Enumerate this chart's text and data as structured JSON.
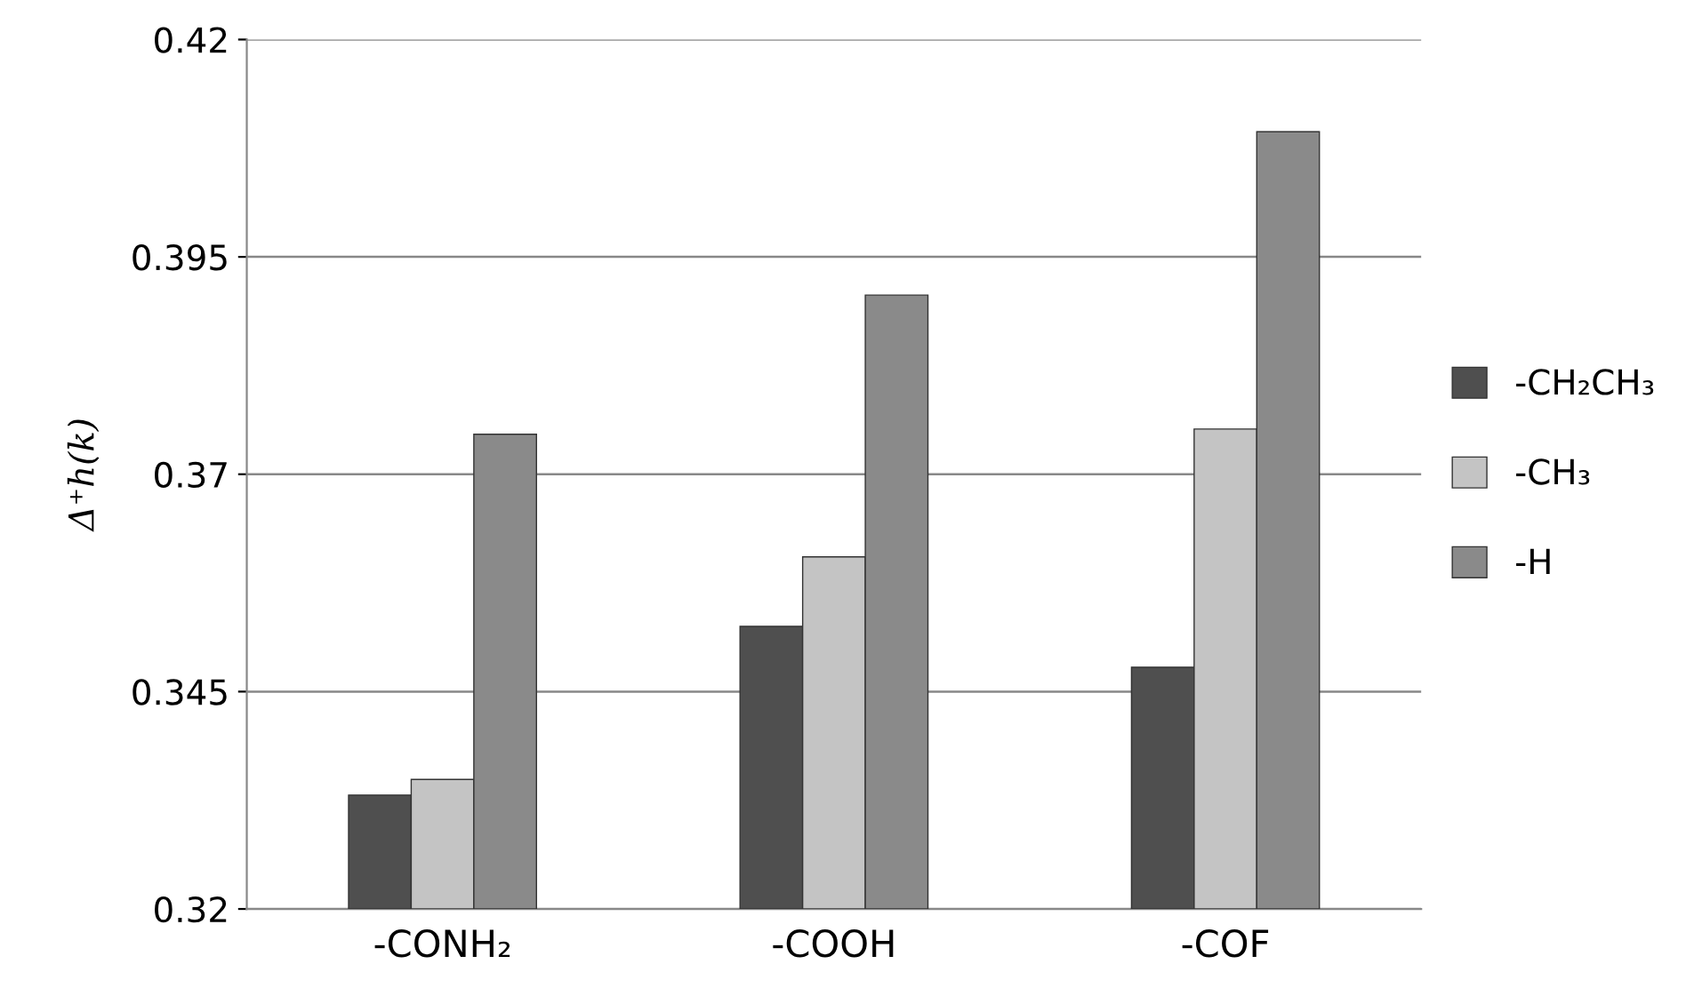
{
  "chart_data": {
    "type": "bar",
    "ylabel": "Δ⁺h(k)",
    "categories": [
      "-CONH₂",
      "-COOH",
      "-COF"
    ],
    "series": [
      {
        "name": "-CH₂CH₃",
        "color": "#4f4f4f",
        "values": [
          0.3331,
          0.3525,
          0.3478
        ]
      },
      {
        "name": "-CH₃",
        "color": "#c4c4c4",
        "values": [
          0.3349,
          0.3605,
          0.3752
        ]
      },
      {
        "name": "-H",
        "color": "#8a8a8a",
        "values": [
          0.3746,
          0.3906,
          0.4094
        ]
      }
    ],
    "ylim": [
      0.32,
      0.42
    ],
    "yticks": [
      0.32,
      0.345,
      0.37,
      0.395,
      0.42
    ],
    "grid": "y",
    "legend": "right"
  }
}
